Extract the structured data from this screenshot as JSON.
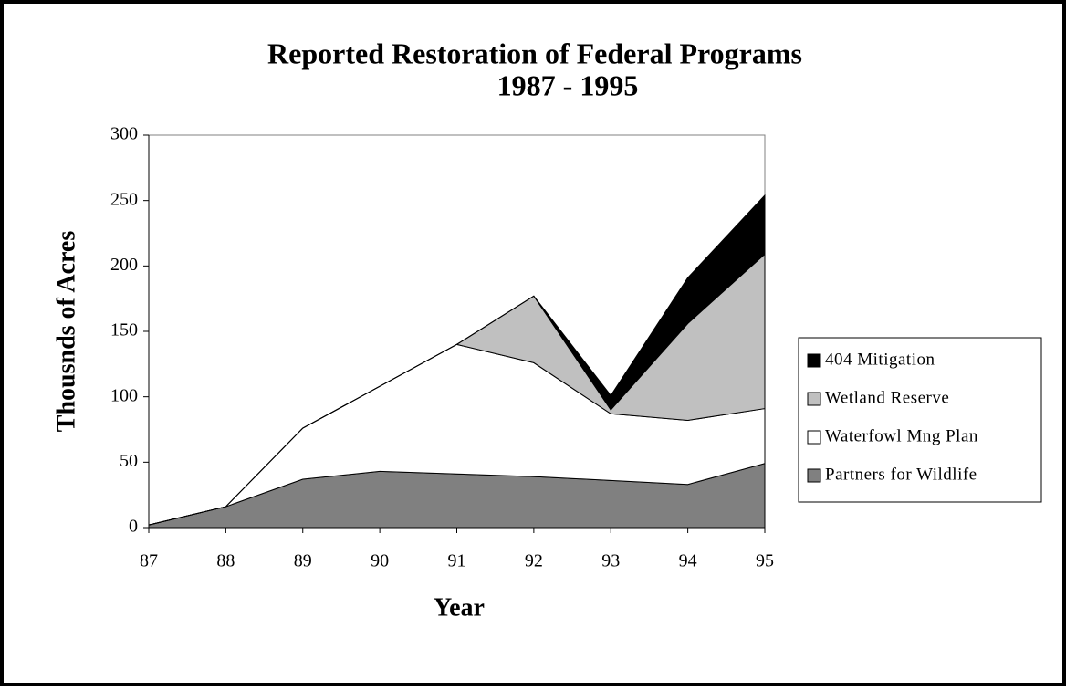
{
  "chart_data": {
    "type": "stacked-area",
    "title": "Reported Restoration of Federal Programs",
    "subtitle": "1987 - 1995",
    "x_label": "Year",
    "y_label": "Thousnds of Acres",
    "categories": [
      "87",
      "88",
      "89",
      "90",
      "91",
      "92",
      "93",
      "94",
      "95"
    ],
    "series": [
      {
        "name": "Partners for Wildlife",
        "color": "#808080",
        "values": [
          2,
          16,
          37,
          43,
          41,
          39,
          36,
          33,
          49
        ]
      },
      {
        "name": "Waterfowl Mng Plan",
        "color": "#ffffff",
        "values": [
          0,
          0,
          39,
          65,
          99,
          87,
          51,
          49,
          42
        ]
      },
      {
        "name": "Wetland Reserve",
        "color": "#c0c0c0",
        "values": [
          0,
          0,
          0,
          0,
          0,
          51,
          3,
          74,
          118
        ]
      },
      {
        "name": "404 Mitigation",
        "color": "#000000",
        "values": [
          0,
          0,
          0,
          0,
          0,
          0,
          11,
          35,
          45
        ]
      }
    ],
    "ylim": [
      0,
      300
    ],
    "yticks": [
      0,
      50,
      100,
      150,
      200,
      250,
      300
    ],
    "legend": "right"
  }
}
